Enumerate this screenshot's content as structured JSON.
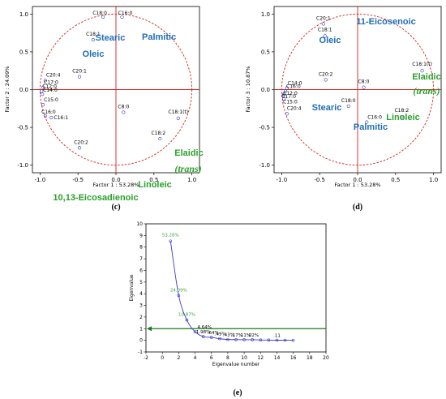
{
  "chart_data": [
    {
      "type": "scatter",
      "panel": "(c)",
      "xlabel": "Factor 1 : 53.28%",
      "ylabel": "Factor 2 : 24.09%",
      "xlim": [
        -1.1,
        1.1
      ],
      "ylim": [
        -1.1,
        1.1
      ],
      "xticks": [
        "-1.0",
        "-0.5",
        "0.0",
        "0.5",
        "1.0"
      ],
      "yticks": [
        "1.0",
        "0.5",
        "0.0",
        "-0.5",
        "-1.0"
      ],
      "points": [
        {
          "label": "C18:0",
          "x": -0.17,
          "y": 0.96
        },
        {
          "label": "C16:0",
          "x": 0.08,
          "y": 0.96
        },
        {
          "label": "C18:1",
          "x": -0.3,
          "y": 0.66
        },
        {
          "label": "C20:1",
          "x": -0.48,
          "y": 0.17
        },
        {
          "label": "C20:4",
          "x": -0.93,
          "y": 0.12
        },
        {
          "label": "C17:0",
          "x": -0.96,
          "y": 0.03
        },
        {
          "label": "C12:0",
          "x": -0.98,
          "y": -0.02
        },
        {
          "label": "C14:0",
          "x": -0.97,
          "y": -0.06
        },
        {
          "label": "C15:0",
          "x": -0.96,
          "y": -0.2
        },
        {
          "label": "C16:1",
          "x": -0.85,
          "y": -0.37
        },
        {
          "label": "C16:0",
          "x": -0.93,
          "y": -0.35
        },
        {
          "label": "C8:0",
          "x": 0.1,
          "y": -0.3
        },
        {
          "label": "C18:1(t)",
          "x": 0.82,
          "y": -0.38
        },
        {
          "label": "C18:2",
          "x": 0.58,
          "y": -0.65
        },
        {
          "label": "C20:2",
          "x": -0.48,
          "y": -0.77
        }
      ],
      "annotations": [
        {
          "text": "Stearic",
          "color": "blue"
        },
        {
          "text": "Palmitic",
          "color": "blue"
        },
        {
          "text": "Oleic",
          "color": "blue"
        },
        {
          "text": "Elaidic",
          "color": "green"
        },
        {
          "text": "(trans)",
          "color": "green"
        },
        {
          "text": "Linoleic",
          "color": "green"
        },
        {
          "text": "10,13-Eicosadienoic",
          "color": "green"
        }
      ]
    },
    {
      "type": "scatter",
      "panel": "(d)",
      "xlabel": "Factor 1 : 53.28%",
      "ylabel": "Factor 3 : 10.87%",
      "xlim": [
        -1.1,
        1.1
      ],
      "ylim": [
        -1.1,
        1.1
      ],
      "xticks": [
        "-1.0",
        "-0.5",
        "0.0",
        "0.5",
        "1.0"
      ],
      "yticks": [
        "1.0",
        "0.5",
        "0.0",
        "-0.5",
        "-1.0"
      ],
      "points": [
        {
          "label": "C20:1",
          "x": -0.45,
          "y": 0.87
        },
        {
          "label": "C18:1",
          "x": -0.43,
          "y": 0.71
        },
        {
          "label": "C20:2",
          "x": -0.42,
          "y": 0.13
        },
        {
          "label": "C8:0",
          "x": 0.08,
          "y": 0.03
        },
        {
          "label": "C18:1(t)",
          "x": 0.85,
          "y": 0.25
        },
        {
          "label": "C14:0",
          "x": -0.93,
          "y": 0.02
        },
        {
          "label": "C16:0",
          "x": -0.95,
          "y": -0.02
        },
        {
          "label": "C12:0",
          "x": -0.97,
          "y": -0.06
        },
        {
          "label": "C17:0",
          "x": -0.98,
          "y": -0.08
        },
        {
          "label": "C15:0",
          "x": -0.97,
          "y": -0.12
        },
        {
          "label": "C20:4",
          "x": -0.93,
          "y": -0.32
        },
        {
          "label": "C18:0",
          "x": -0.12,
          "y": -0.22
        },
        {
          "label": "C16:0",
          "x": 0.12,
          "y": -0.43
        },
        {
          "label": "C18:2",
          "x": 0.58,
          "y": -0.36
        }
      ],
      "annotations": [
        {
          "text": "11-Eicosenoic",
          "color": "blue"
        },
        {
          "text": "Oleic",
          "color": "blue"
        },
        {
          "text": "Stearic",
          "color": "blue"
        },
        {
          "text": "Palmitic",
          "color": "blue"
        },
        {
          "text": "Elaidic",
          "color": "green"
        },
        {
          "text": "(trans)",
          "color": "green"
        },
        {
          "text": "Linoleic",
          "color": "green"
        }
      ]
    },
    {
      "type": "line",
      "panel": "(e)",
      "xlabel": "Eigenvalue number",
      "ylabel": "Eigenvalue",
      "xlim": [
        -2,
        20
      ],
      "ylim": [
        -1,
        10
      ],
      "xticks": [
        "-2",
        "0",
        "2",
        "4",
        "6",
        "8",
        "10",
        "12",
        "14",
        "16",
        "18",
        "20"
      ],
      "yticks": [
        "-1",
        "0",
        "1",
        "2",
        "3",
        "4",
        "5",
        "6",
        "7",
        "8",
        "9",
        "10"
      ],
      "x": [
        1,
        2,
        3,
        4,
        5,
        6,
        7,
        8,
        9,
        10,
        11,
        12,
        13,
        14,
        15,
        16
      ],
      "values": [
        8.52,
        3.85,
        1.74,
        0.74,
        0.32,
        0.25,
        0.14,
        0.07,
        0.06,
        0.05,
        0.05,
        0.03,
        0.02,
        0.01,
        0.01,
        0.0
      ],
      "value_labels": [
        "53.28%",
        "24.09%",
        "10.87%",
        "4.64%",
        "1.98%",
        ".64%",
        ".49%",
        ".43%",
        ".17%",
        ".11%",
        ".02%",
        "",
        "",
        ".11",
        "",
        ""
      ],
      "reference_line": {
        "y": 1.0,
        "color": "#1a7a1a"
      }
    }
  ],
  "captions": {
    "c": "(c)",
    "d": "(d)",
    "e": "(e)"
  }
}
